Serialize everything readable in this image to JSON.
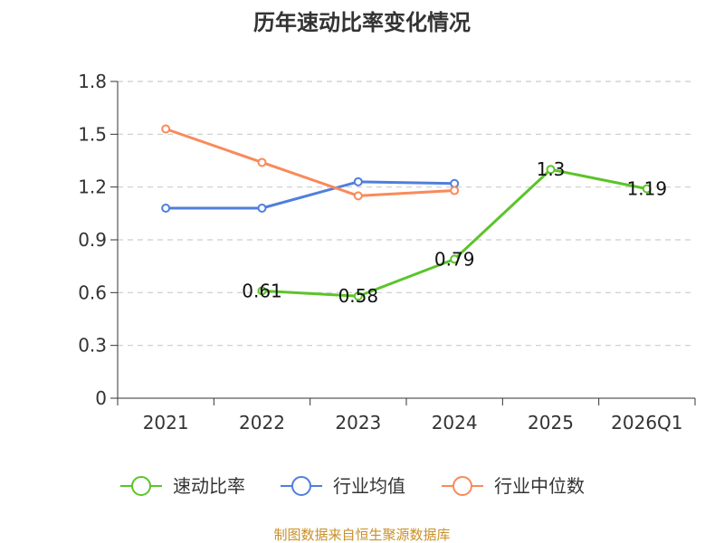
{
  "chart_data": {
    "type": "line",
    "title": "历年速动比率变化情况",
    "categories": [
      "2021",
      "2022",
      "2023",
      "2024",
      "2025",
      "2026Q1"
    ],
    "ylim": [
      0,
      1.8
    ],
    "yticks": [
      "0",
      "0.3",
      "0.6",
      "0.9",
      "1.2",
      "1.5",
      "1.8"
    ],
    "grid": "horizontal-dashed",
    "legend_position": "bottom",
    "series": [
      {
        "name": "速动比率",
        "color": "#5bc42a",
        "values": [
          null,
          0.61,
          0.58,
          0.79,
          1.3,
          1.19
        ],
        "labels": [
          "",
          "0.61",
          "0.58",
          "0.79",
          "1.3",
          "1.19"
        ]
      },
      {
        "name": "行业均值",
        "color": "#4f7fdb",
        "values": [
          1.08,
          1.08,
          1.23,
          1.22,
          null,
          null
        ]
      },
      {
        "name": "行业中位数",
        "color": "#f98a5a",
        "values": [
          1.53,
          1.34,
          1.15,
          1.18,
          null,
          null
        ]
      }
    ]
  },
  "source": "制图数据来自恒生聚源数据库"
}
